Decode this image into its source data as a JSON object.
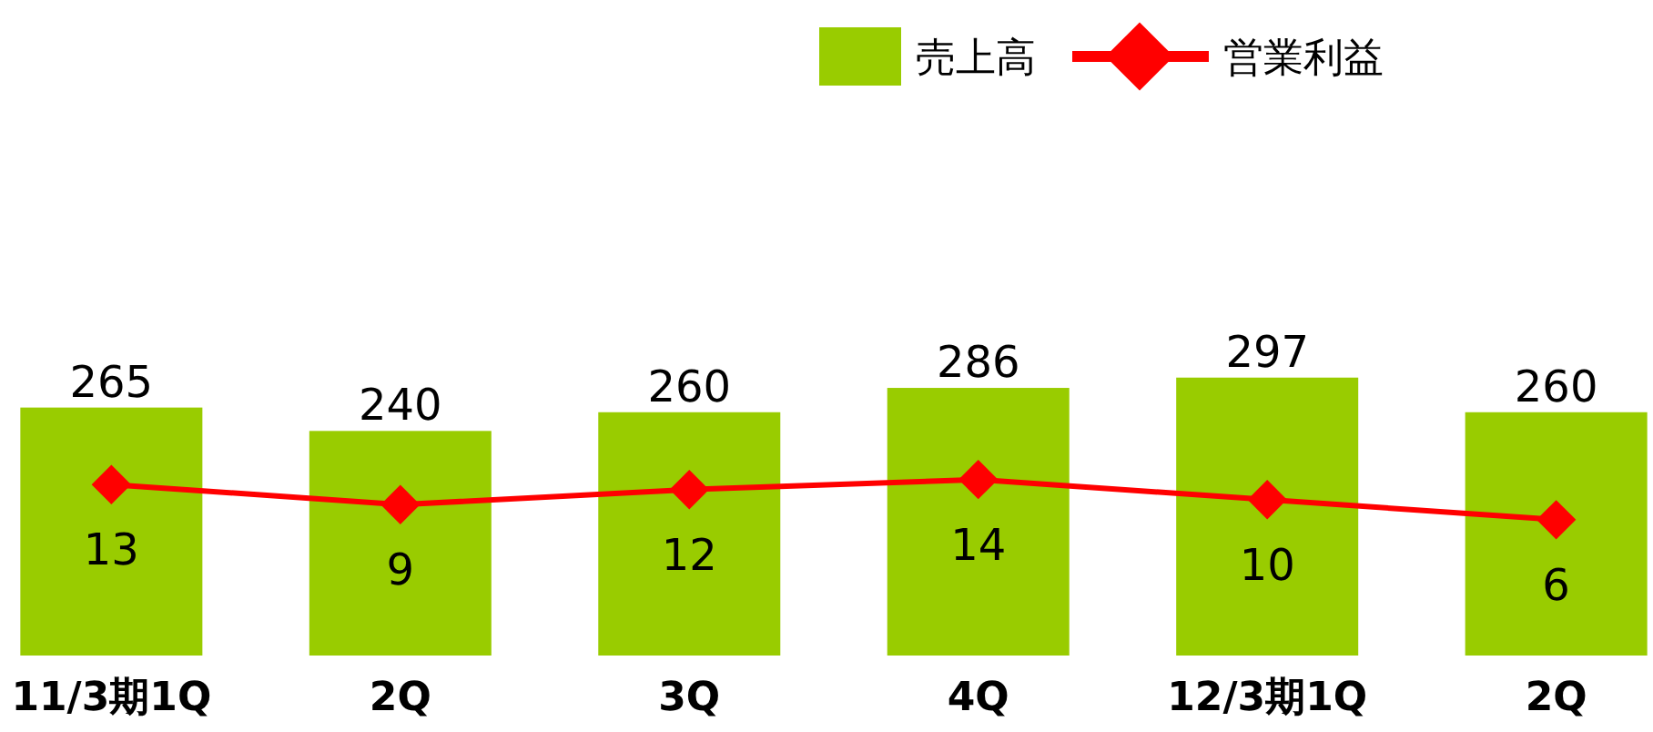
{
  "chart_data": {
    "type": "bar",
    "categories": [
      "11/3期1Q",
      "2Q",
      "3Q",
      "4Q",
      "12/3期1Q",
      "2Q"
    ],
    "series": [
      {
        "name": "売上高",
        "color": "#99cc00",
        "values": [
          265,
          240,
          260,
          286,
          297,
          260
        ]
      },
      {
        "name": "営業利益",
        "type": "line",
        "axis": "y2",
        "color": "#ff0000",
        "marker": "diamond",
        "values": [
          13,
          9,
          12,
          14,
          10,
          6
        ]
      }
    ],
    "tick_labels": "x",
    "data_labels": true,
    "legend": "top right"
  }
}
